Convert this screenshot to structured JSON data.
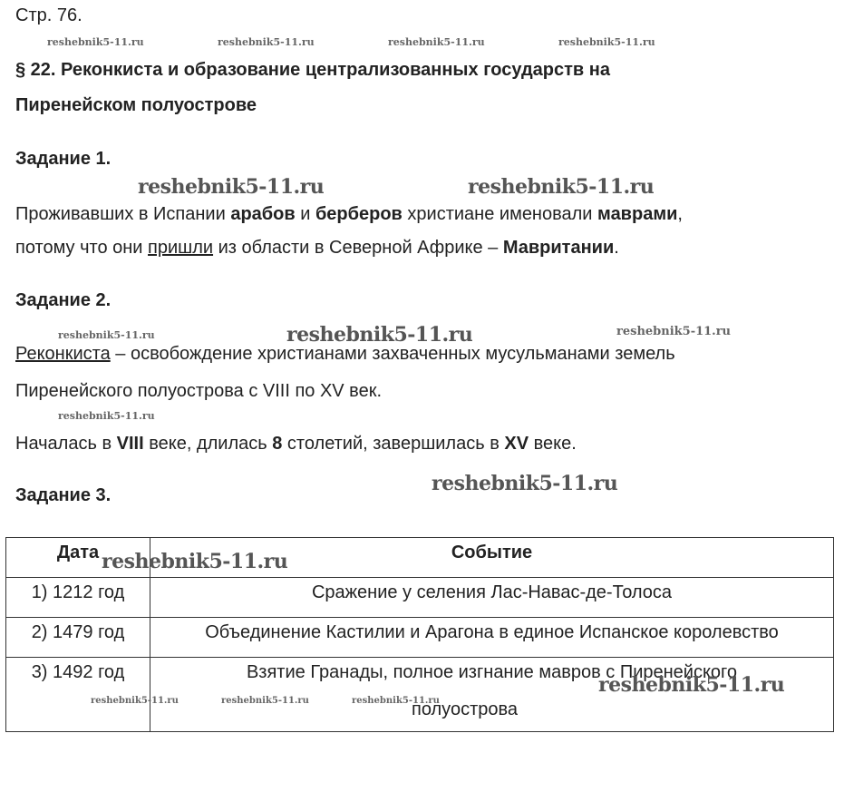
{
  "page_label": "Стр. 76.",
  "watermark": "reshebnik5-11.ru",
  "title_line1": "§ 22. Реконкиста и образование централизованных государств на",
  "title_line2": "Пиренейском полуострове",
  "task1": {
    "heading": "Задание 1.",
    "l1": [
      "Проживавших в Испании ",
      "арабов",
      " и ",
      "берберов",
      " христиане именовали ",
      "маврами",
      ","
    ],
    "l2": [
      "потому что они ",
      "пришли",
      " из области в Северной Африке – ",
      "Мавритании",
      "."
    ]
  },
  "task2": {
    "heading": "Задание 2.",
    "l1": [
      "Реконкиста",
      " – освобождение христианами захваченных мусульманами земель"
    ],
    "l2": "Пиренейского полуострова с VIII по XV век.",
    "l3": [
      "Началась в ",
      "VIII",
      " веке, длилась ",
      "8",
      " столетий, завершилась в ",
      "XV",
      " веке."
    ]
  },
  "task3": {
    "heading": "Задание 3.",
    "table": {
      "headers": [
        "Дата",
        "Событие"
      ],
      "rows": [
        [
          "1) 1212 год",
          "Сражение у селения Лас-Навас-де-Толоса"
        ],
        [
          "2) 1479 год",
          "Объединение Кастилии и Арагона в единое Испанское королевство"
        ],
        [
          "3) 1492 год",
          "Взятие Гранады, полное изгнание мавров с Пиренейского",
          "полуострова"
        ]
      ]
    }
  }
}
